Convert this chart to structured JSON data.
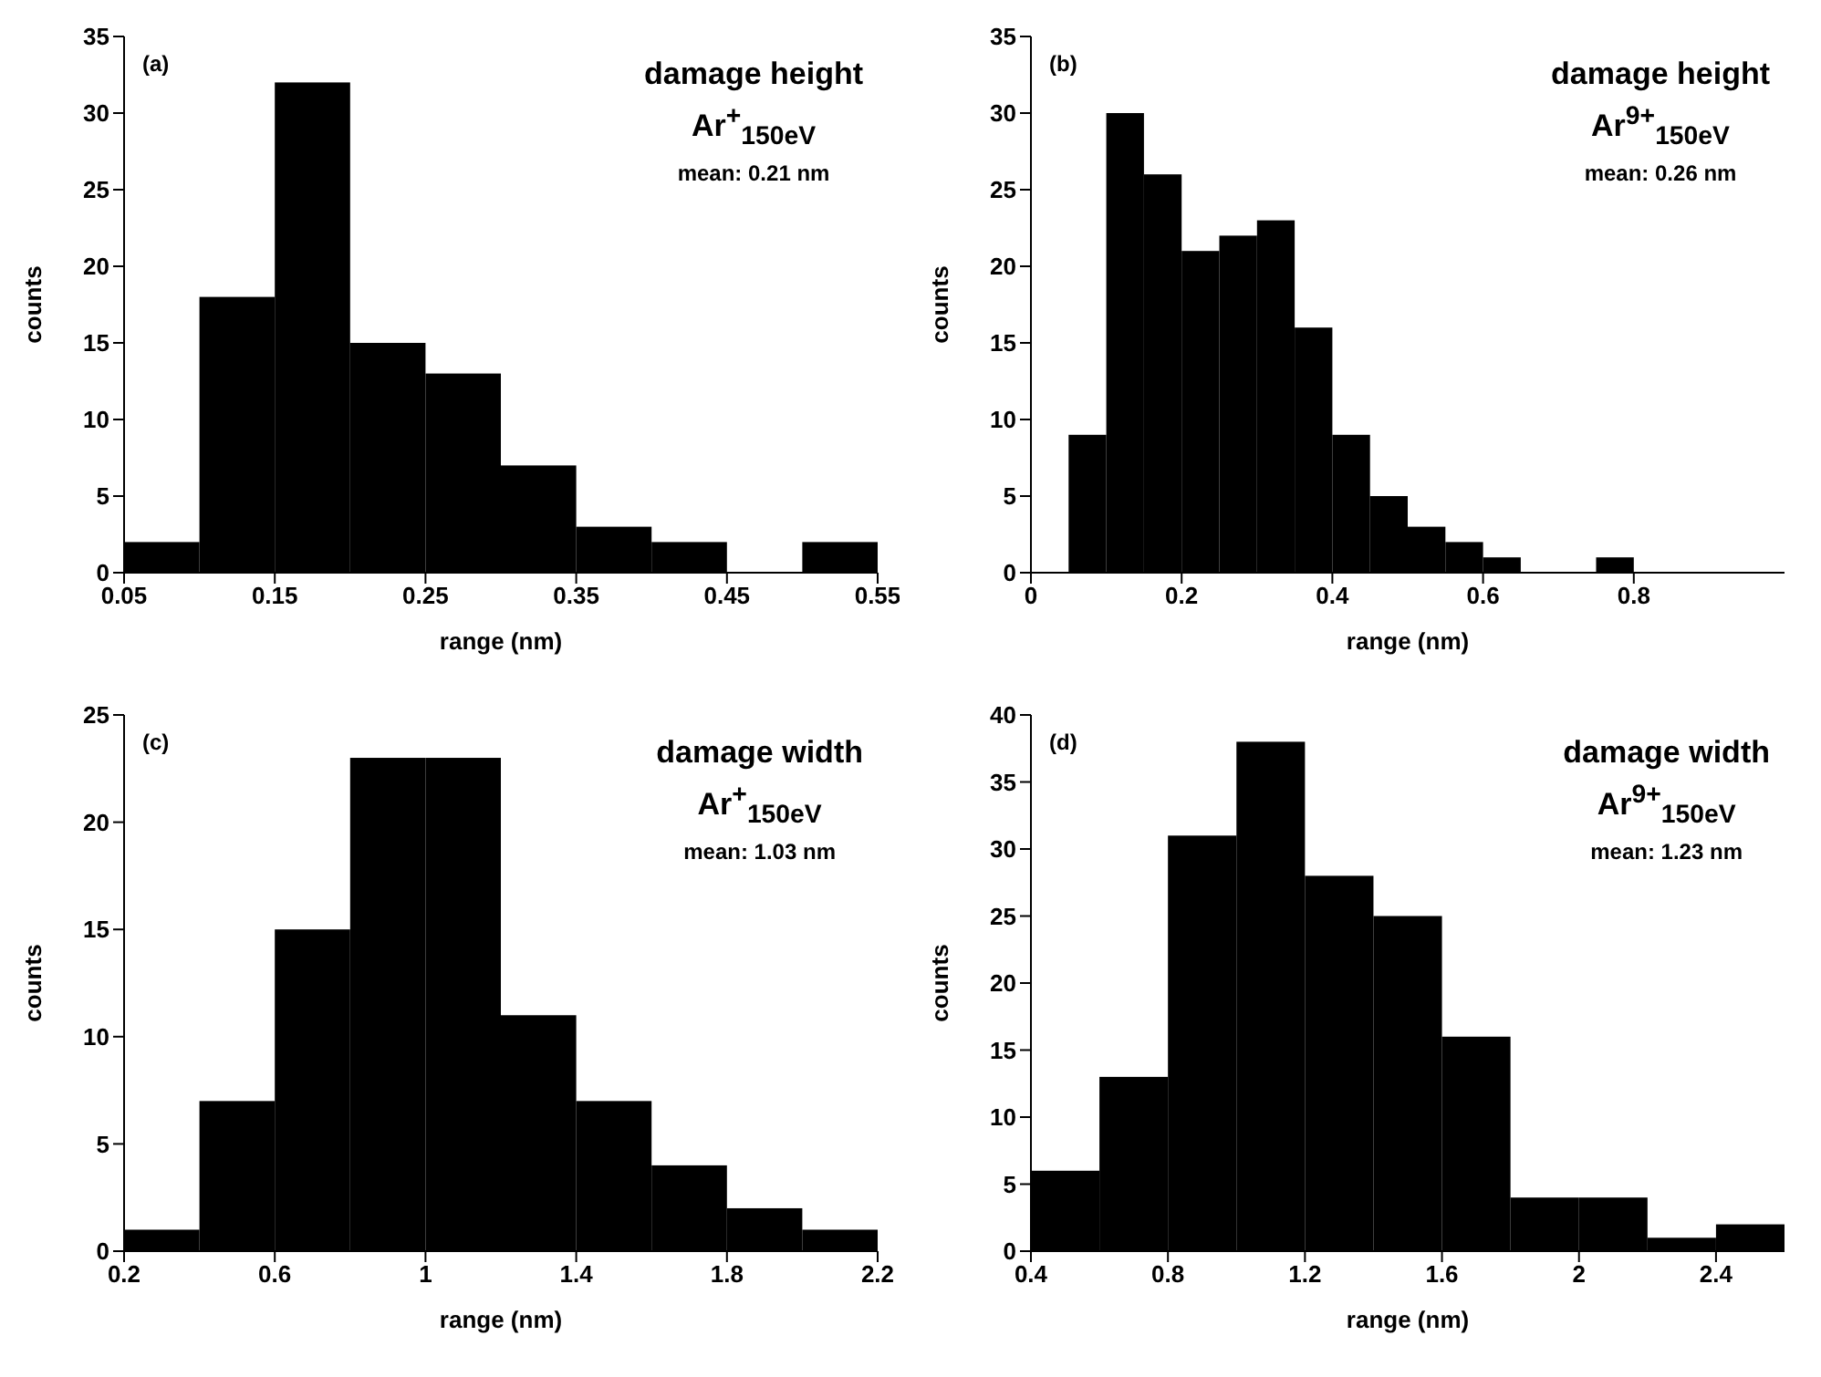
{
  "chart_data": [
    {
      "type": "histogram",
      "xlabel": "range (nm)",
      "ylabel": "counts",
      "annotations": [
        "(a)",
        "damage height",
        "Ar$^{+}$$_{150eV}$",
        "mean: 0.21 nm"
      ],
      "bins": [
        0.05,
        0.1,
        0.15,
        0.2,
        0.25,
        0.3,
        0.35,
        0.4,
        0.45,
        0.5,
        0.55
      ],
      "values": [
        2,
        18,
        32,
        15,
        13,
        7,
        3,
        2,
        0,
        2
      ],
      "color": "#000000",
      "xlim": [
        0.05,
        0.55
      ],
      "xticks": [
        0.05,
        0.15,
        0.25,
        0.35,
        0.45,
        0.55
      ],
      "ylim": [
        0,
        35
      ],
      "yticks": [
        0,
        5,
        10,
        15,
        20,
        25,
        30,
        35
      ]
    },
    {
      "type": "histogram",
      "xlabel": "range (nm)",
      "ylabel": "counts",
      "annotations": [
        "(b)",
        "damage height",
        "Ar$^{9+}$$_{150eV}$",
        "mean: 0.26 nm"
      ],
      "bins": [
        0.05,
        0.1,
        0.15,
        0.2,
        0.25,
        0.3,
        0.35,
        0.4,
        0.45,
        0.5,
        0.55,
        0.6,
        0.65,
        0.7,
        0.75,
        0.8
      ],
      "values": [
        9,
        30,
        26,
        21,
        22,
        23,
        16,
        9,
        5,
        3,
        2,
        1,
        0,
        0,
        1
      ],
      "color": "#000000",
      "xlim": [
        0,
        1
      ],
      "xticks": [
        0,
        0.2,
        0.4,
        0.6,
        0.8
      ],
      "ylim": [
        0,
        35
      ],
      "yticks": [
        0,
        5,
        10,
        15,
        20,
        25,
        30,
        35
      ]
    },
    {
      "type": "histogram",
      "xlabel": "range (nm)",
      "ylabel": "counts",
      "annotations": [
        "(c)",
        "damage width",
        "Ar$^{+}$$_{150eV}$",
        "mean: 1.03 nm"
      ],
      "bins": [
        0.2,
        0.4,
        0.6,
        0.8,
        1.0,
        1.2,
        1.4,
        1.6,
        1.8,
        2.0,
        2.2
      ],
      "values": [
        1,
        7,
        15,
        23,
        23,
        11,
        7,
        4,
        2,
        1
      ],
      "color": "#000000",
      "xlim": [
        0.2,
        2.2
      ],
      "xticks": [
        0.2,
        0.6,
        1,
        1.4,
        1.8,
        2.2
      ],
      "ylim": [
        0,
        25
      ],
      "yticks": [
        0,
        5,
        10,
        15,
        20,
        25
      ]
    },
    {
      "type": "histogram",
      "xlabel": "range (nm)",
      "ylabel": "counts",
      "annotations": [
        "(d)",
        "damage width",
        "Ar$^{9+}$$_{150eV}$",
        "mean: 1.23 nm"
      ],
      "bins": [
        0.4,
        0.6,
        0.8,
        1.0,
        1.2,
        1.4,
        1.6,
        1.8,
        2.0,
        2.2,
        2.4,
        2.6
      ],
      "values": [
        6,
        13,
        31,
        38,
        28,
        25,
        16,
        4,
        4,
        1,
        2
      ],
      "color": "#000000",
      "xlim": [
        0.4,
        2.6
      ],
      "xticks": [
        0.4,
        0.8,
        1.2,
        1.6,
        2,
        2.4
      ],
      "ylim": [
        0,
        40
      ],
      "yticks": [
        0,
        5,
        10,
        15,
        20,
        25,
        30,
        35,
        40
      ]
    }
  ]
}
